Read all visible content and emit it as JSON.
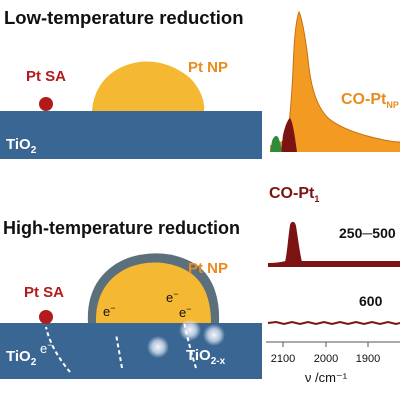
{
  "top_panel": {
    "title": "Low-temperature reduction",
    "pt_sa_label": "Pt SA",
    "pt_np_label": "Pt NP",
    "support_label_main": "TiO",
    "support_label_sub": "2"
  },
  "bottom_panel": {
    "title": "High-temperature reduction",
    "pt_sa_label": "Pt SA",
    "pt_np_label": "Pt NP",
    "electron_label": "e",
    "electron_sup": "−",
    "support_left_main": "TiO",
    "support_left_sub": "2",
    "support_right_main": "TiO",
    "support_right_sub": "2-x"
  },
  "spectra": {
    "co_ptnp_main": "CO-Pt",
    "co_ptnp_sub": "NP",
    "co_pt1_main": "CO-Pt",
    "co_pt1_sub": "1",
    "temp_label_1": "250─500",
    "temp_label_2": "600",
    "x_ticks": [
      "2100",
      "2000",
      "1900"
    ],
    "x_axis_label": "ν /cm⁻¹"
  },
  "colors": {
    "support_blue": "#3a6693",
    "np_yellow": "#f4b832",
    "shell_gray": "#5c6f7d",
    "pt_red": "#b31b1b",
    "orange_peak": "#f39a22",
    "dark_red": "#7c1313",
    "green_peak": "#2e8b3a",
    "title_text": "#111111",
    "label_red": "#b31b1b",
    "label_orange": "#e98b1e",
    "label_dark": "#7c1313"
  }
}
